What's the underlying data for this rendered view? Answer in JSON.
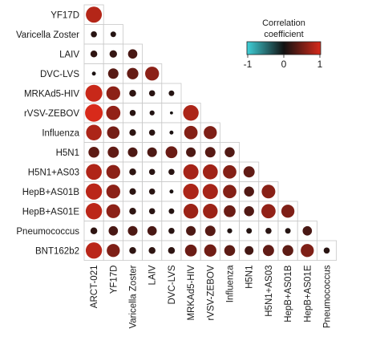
{
  "chart_data": {
    "type": "heatmap",
    "subtype": "lower-triangular correlation matrix (circle size and color = correlation)",
    "row_labels": [
      "YF17D",
      "Varicella Zoster",
      "LAIV",
      "DVC-LVS",
      "MRKAd5-HIV",
      "rVSV-ZEBOV",
      "Influenza",
      "H5N1",
      "H5N1+AS03",
      "HepB+AS01B",
      "HepB+AS01E",
      "Pneumococcus",
      "BNT162b2"
    ],
    "col_labels": [
      "ARCT-021",
      "YF17D",
      "Varicella Zoster",
      "LAIV",
      "DVC-LVS",
      "MRKAd5-HIV",
      "rVSV-ZEBOV",
      "Influenza",
      "H5N1",
      "H5N1+AS03",
      "HepB+AS01B",
      "HepB+AS01E",
      "Pneumococcus"
    ],
    "values": [
      [
        0.82
      ],
      [
        0.12,
        0.1
      ],
      [
        0.15,
        0.18,
        0.28
      ],
      [
        0.05,
        0.35,
        0.42,
        0.62
      ],
      [
        0.92,
        0.62,
        0.15,
        0.12,
        0.1
      ],
      [
        1.0,
        0.65,
        0.12,
        0.08,
        0.03,
        0.78
      ],
      [
        0.78,
        0.5,
        0.14,
        0.12,
        0.05,
        0.58,
        0.55
      ],
      [
        0.38,
        0.4,
        0.3,
        0.3,
        0.45,
        0.3,
        0.35,
        0.32
      ],
      [
        0.8,
        0.62,
        0.15,
        0.12,
        0.12,
        0.75,
        0.72,
        0.58,
        0.4
      ],
      [
        0.85,
        0.62,
        0.14,
        0.12,
        0.05,
        0.78,
        0.75,
        0.58,
        0.32,
        0.6
      ],
      [
        0.86,
        0.62,
        0.15,
        0.12,
        0.1,
        0.7,
        0.7,
        0.45,
        0.32,
        0.65,
        0.55
      ],
      [
        0.15,
        0.28,
        0.3,
        0.28,
        0.12,
        0.3,
        0.35,
        0.08,
        0.1,
        0.12,
        0.1,
        0.28
      ],
      [
        0.85,
        0.55,
        0.15,
        0.15,
        0.15,
        0.45,
        0.48,
        0.38,
        0.25,
        0.4,
        0.38,
        0.55,
        0.12
      ]
    ],
    "legend": {
      "title": "Correlation\ncoefficient",
      "ticks": [
        "-1",
        "0",
        "1"
      ],
      "range": [
        -1,
        1
      ],
      "colors": [
        "#3fd0d8",
        "#111111",
        "#d82a1a"
      ],
      "placement": "top-right"
    }
  }
}
